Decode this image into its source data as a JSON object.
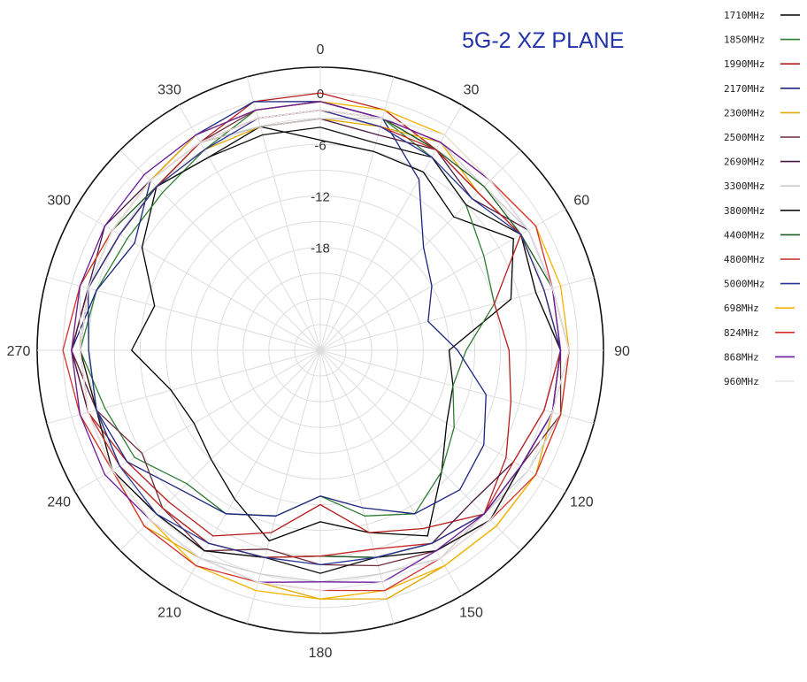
{
  "chart_data": {
    "type": "polar-line",
    "title": "5G-2 XZ PLANE",
    "angle_ticks": [
      "0",
      "30",
      "60",
      "90",
      "120",
      "150",
      "180",
      "210",
      "240",
      "270",
      "300",
      "330"
    ],
    "angle_values": [
      0,
      30,
      60,
      90,
      120,
      150,
      180,
      210,
      240,
      270,
      300,
      330
    ],
    "radial_ticks": [
      "0",
      "-6",
      "-12",
      "-18"
    ],
    "radial_values": [
      0,
      -6,
      -12,
      -18
    ],
    "rlim": [
      -30,
      3
    ],
    "grid": true,
    "legend_position": "right",
    "theta": [
      0,
      15,
      30,
      45,
      60,
      75,
      90,
      105,
      120,
      135,
      150,
      165,
      180,
      195,
      210,
      225,
      240,
      255,
      270,
      285,
      300,
      315,
      330,
      345
    ],
    "series": [
      {
        "name": "1710MHz",
        "color": "#000000",
        "values": [
          -5.5,
          -6,
          -6,
          -8,
          -4,
          -7,
          -15,
          -14,
          -13,
          -10,
          -5,
          -8,
          -10,
          -7,
          -10,
          -12,
          -13,
          -12,
          -8,
          -10,
          -6,
          -3,
          -4,
          -3
        ]
      },
      {
        "name": "1850MHz",
        "color": "#2e7d32",
        "values": [
          -1,
          -2,
          -4,
          -6,
          -8,
          -9,
          -13,
          -14,
          -12,
          -10,
          -8,
          -10,
          -13,
          -10,
          -8,
          -8,
          -5,
          -4,
          -2,
          -3,
          -4,
          -4,
          -3,
          -1
        ]
      },
      {
        "name": "1990MHz",
        "color": "#b71c1c",
        "values": [
          0,
          -1,
          -3,
          -4,
          -3,
          -9,
          -8,
          -7,
          -5,
          -3,
          -6,
          -8,
          -12,
          -8,
          -5,
          -5,
          -4,
          -2,
          -1,
          -2,
          -3,
          -3,
          -2,
          0
        ]
      },
      {
        "name": "2170MHz",
        "color": "#1a237e",
        "values": [
          -1,
          -2,
          -7,
          -13,
          -15,
          -17,
          -14,
          -10,
          -8,
          -7,
          -8,
          -11,
          -13,
          -10,
          -8,
          -7,
          -4,
          -3,
          -1,
          -3,
          -5,
          -2,
          -1,
          0
        ]
      },
      {
        "name": "2300MHz",
        "color": "#e0a800",
        "values": [
          -3,
          -3,
          -2,
          -4,
          -3,
          -3,
          -2,
          -2,
          -1,
          -1,
          -1,
          0,
          -1,
          -2,
          -2,
          -1,
          -2,
          -3,
          -2,
          -2,
          -3,
          -3,
          -3,
          -3
        ]
      },
      {
        "name": "2500MHz",
        "color": "#6d2c3c",
        "values": [
          -1,
          -2,
          -3,
          -4,
          -3,
          -4,
          -2,
          -1,
          -3,
          -2,
          -3,
          -4,
          -5,
          -6,
          -3,
          -4,
          -6,
          -3,
          -1,
          -2,
          -3,
          -3,
          -2,
          -1
        ]
      },
      {
        "name": "2690MHz",
        "color": "#4a1942",
        "values": [
          -3,
          -4,
          -3,
          -5,
          -2,
          -2,
          -2,
          -3,
          -4,
          -5,
          -4,
          -5,
          -6,
          -5,
          -3,
          -3,
          -2,
          -2,
          -1,
          -2,
          -1,
          -2,
          -2,
          -3
        ]
      },
      {
        "name": "3300MHz",
        "color": "#cccccc",
        "values": [
          -3,
          -2,
          -2,
          -3,
          -2,
          -2,
          -1,
          -1,
          -2,
          -3,
          -2,
          -3,
          -3,
          -3,
          -2,
          -2,
          -2,
          -2,
          -2,
          -1,
          -2,
          -2,
          -2,
          -3
        ]
      },
      {
        "name": "3800MHz",
        "color": "#111111",
        "values": [
          -4,
          -5,
          -4,
          -6,
          -3,
          -4,
          -2,
          -2,
          -3,
          -2,
          -3,
          -5,
          -4,
          -5,
          -3,
          -3,
          -2,
          -3,
          -2,
          -2,
          -3,
          -3,
          -4,
          -4
        ]
      },
      {
        "name": "4400MHz",
        "color": "#1b5e20",
        "values": [
          -2,
          -2,
          -3,
          -3,
          -3,
          -2,
          -1,
          -2,
          -3,
          -3,
          -4,
          -5,
          -6,
          -5,
          -4,
          -4,
          -3,
          -3,
          -3,
          -2,
          -2,
          -3,
          -2,
          -2
        ]
      },
      {
        "name": "4800MHz",
        "color": "#c62828",
        "values": [
          -2,
          -3,
          -3,
          -4,
          -3,
          -3,
          -2,
          -3,
          -4,
          -3,
          -4,
          -6,
          -6,
          -5,
          -4,
          -4,
          -3,
          -2,
          -2,
          -2,
          -3,
          -3,
          -2,
          -2
        ]
      },
      {
        "name": "5000MHz",
        "color": "#283593",
        "values": [
          -2,
          -3,
          -4,
          -5,
          -3,
          -3,
          -2,
          -2,
          -3,
          -3,
          -4,
          -5,
          -5,
          -5,
          -4,
          -3,
          -3,
          -3,
          -3,
          -2,
          -3,
          -3,
          -3,
          -2
        ]
      },
      {
        "name": "698MHz",
        "color": "#f2b200",
        "values": [
          -1,
          -1,
          -1,
          -2,
          -1,
          -1,
          -1,
          -1,
          -1,
          -1,
          -1,
          -1,
          -1,
          -1,
          -1,
          -2,
          -2,
          -1,
          -1,
          -1,
          -2,
          -2,
          -1,
          -1
        ]
      },
      {
        "name": "824MHz",
        "color": "#d32f2f",
        "values": [
          -2,
          -2,
          -2,
          -2,
          -1,
          -2,
          -1,
          -1,
          -1,
          -2,
          -2,
          -1,
          -2,
          -2,
          -1,
          -1,
          -2,
          -1,
          0,
          -1,
          -2,
          -2,
          -2,
          -2
        ]
      },
      {
        "name": "868MHz",
        "color": "#6a1b9a",
        "values": [
          -1,
          -2,
          -2,
          -2,
          -2,
          -2,
          -2,
          -2,
          -3,
          -3,
          -3,
          -2,
          -3,
          -2,
          -2,
          -2,
          -1,
          -1,
          -1,
          -1,
          -1,
          -1,
          -1,
          -1
        ]
      },
      {
        "name": "960MHz",
        "color": "#e6e6e6",
        "values": [
          -2,
          -2,
          -1,
          -2,
          -2,
          -2,
          -1,
          -2,
          -2,
          -2,
          -2,
          -2,
          -2,
          -2,
          -2,
          -2,
          -2,
          -2,
          -2,
          -2,
          -2,
          -2,
          -2,
          -2
        ]
      }
    ]
  }
}
